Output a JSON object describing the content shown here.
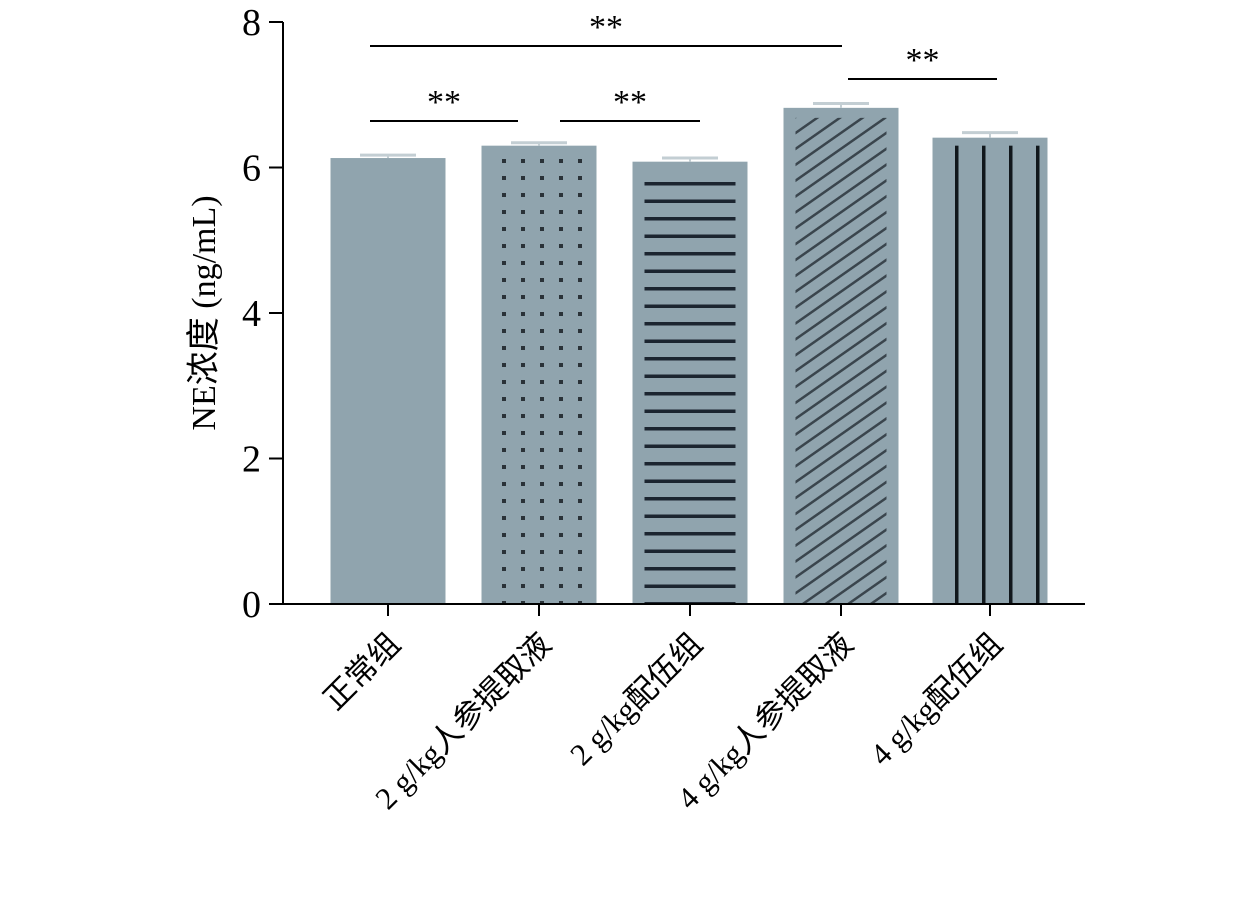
{
  "chart_data": {
    "type": "bar",
    "title": "",
    "xlabel": "",
    "ylabel": "NE浓度 (ng/mL)",
    "ylim": [
      0,
      8
    ],
    "yticks": [
      0,
      2,
      4,
      6,
      8
    ],
    "categories": [
      "正常组",
      "2 g/kg人参提取液",
      "2 g/kg配伍组",
      "4 g/kg人参提取液",
      "4 g/kg配伍组"
    ],
    "values": [
      6.13,
      6.3,
      6.08,
      6.82,
      6.41
    ],
    "errors": [
      0.04,
      0.04,
      0.05,
      0.06,
      0.07
    ],
    "patterns": [
      "solid",
      "dots",
      "horizontal",
      "diagonal",
      "vertical"
    ],
    "bar_color": "#90a4ae",
    "error_color": "#c3ced3",
    "significance": [
      {
        "from": 0,
        "to": 3,
        "label": "**"
      },
      {
        "from": 0,
        "to": 1,
        "label": "**"
      },
      {
        "from": 1,
        "to": 2,
        "label": "**"
      },
      {
        "from": 3,
        "to": 4,
        "label": "**"
      }
    ]
  }
}
